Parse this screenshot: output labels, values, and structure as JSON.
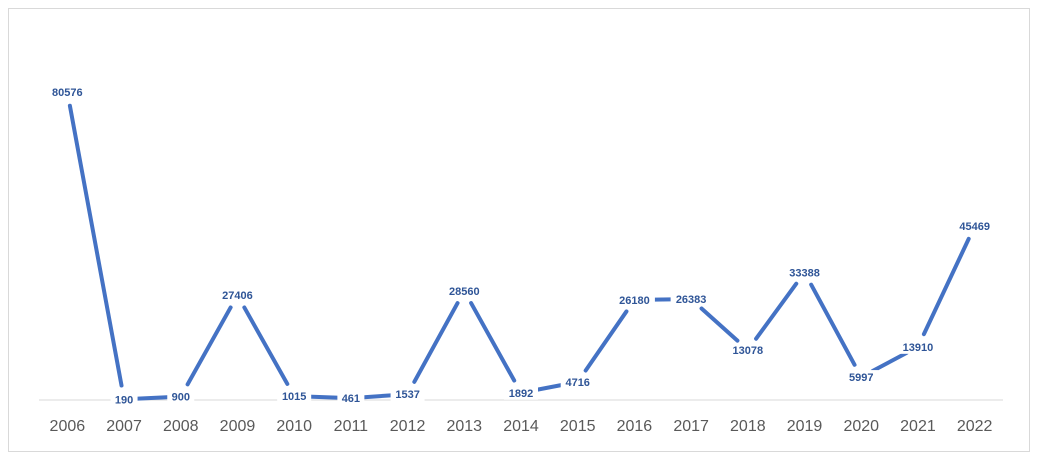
{
  "chart_data": {
    "type": "line",
    "title": "",
    "xlabel": "",
    "ylabel": "",
    "categories": [
      "2006",
      "2007",
      "2008",
      "2009",
      "2010",
      "2011",
      "2012",
      "2013",
      "2014",
      "2015",
      "2016",
      "2017",
      "2018",
      "2019",
      "2020",
      "2021",
      "2022"
    ],
    "series": [
      {
        "values": [
          80576,
          190,
          900,
          27406,
          1015,
          461,
          1537,
          28560,
          1892,
          4716,
          26180,
          26383,
          13078,
          33388,
          5997,
          13910,
          45469
        ],
        "color": "#4472c4"
      }
    ],
    "ylim": [
      0,
      90000
    ],
    "grid": false,
    "legend": "none",
    "data_labels": true
  }
}
